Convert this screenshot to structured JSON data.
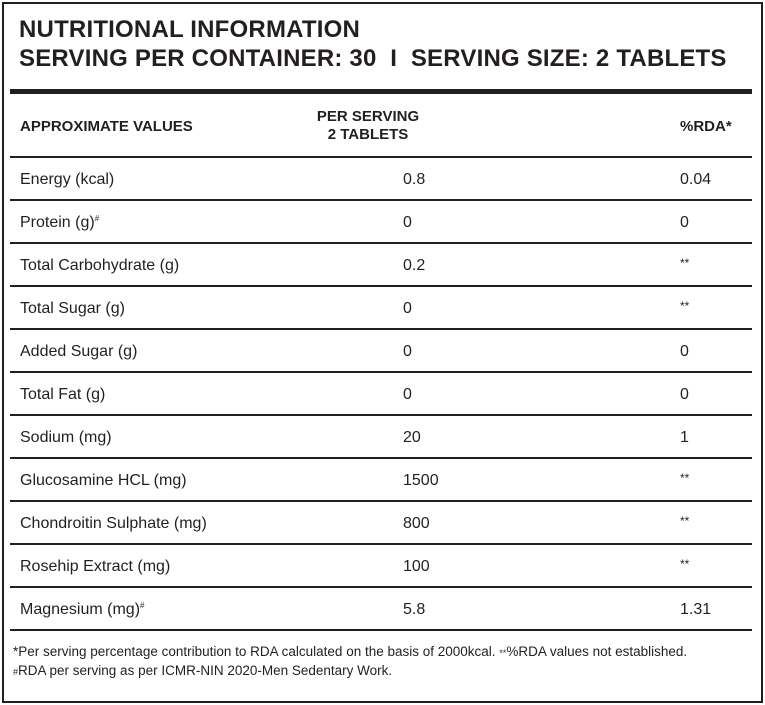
{
  "title": {
    "line1": "NUTRITIONAL INFORMATION",
    "line2": "SERVING PER CONTAINER: 30  I  SERVING SIZE: 2 TABLETS"
  },
  "table": {
    "headers": {
      "approx": "APPROXIMATE VALUES",
      "per_serving_1": "PER SERVING",
      "per_serving_2": "2 TABLETS",
      "rda": "%RDA*"
    },
    "rows": [
      {
        "name": "Energy (kcal)",
        "mark": "",
        "value": "0.8",
        "rda": "0.04"
      },
      {
        "name": "Protein (g)",
        "mark": "#",
        "value": "0",
        "rda": "0"
      },
      {
        "name": "Total Carbohydrate (g)",
        "mark": "",
        "value": "0.2",
        "rda": "**"
      },
      {
        "name": "Total Sugar (g)",
        "mark": "",
        "value": "0",
        "rda": "**"
      },
      {
        "name": "Added Sugar (g)",
        "mark": "",
        "value": "0",
        "rda": "0"
      },
      {
        "name": "Total Fat (g)",
        "mark": "",
        "value": "0",
        "rda": "0"
      },
      {
        "name": "Sodium (mg)",
        "mark": "",
        "value": "20",
        "rda": "1"
      },
      {
        "name": "Glucosamine HCL (mg)",
        "mark": "",
        "value": "1500",
        "rda": "**"
      },
      {
        "name": "Chondroitin Sulphate (mg)",
        "mark": "",
        "value": "800",
        "rda": "**"
      },
      {
        "name": "Rosehip Extract (mg)",
        "mark": "",
        "value": "100",
        "rda": "**"
      },
      {
        "name": "Magnesium (mg)",
        "mark": "#",
        "value": "5.8",
        "rda": "1.31"
      }
    ]
  },
  "footnotes": {
    "line1_a": "*Per serving percentage contribution to RDA calculated on the basis of 2000kcal. ",
    "line1_stars": "**",
    "line1_b": "%RDA values not established.",
    "line2_mark": "#",
    "line2": "RDA per serving as per ICMR-NIN 2020-Men Sedentary Work."
  }
}
